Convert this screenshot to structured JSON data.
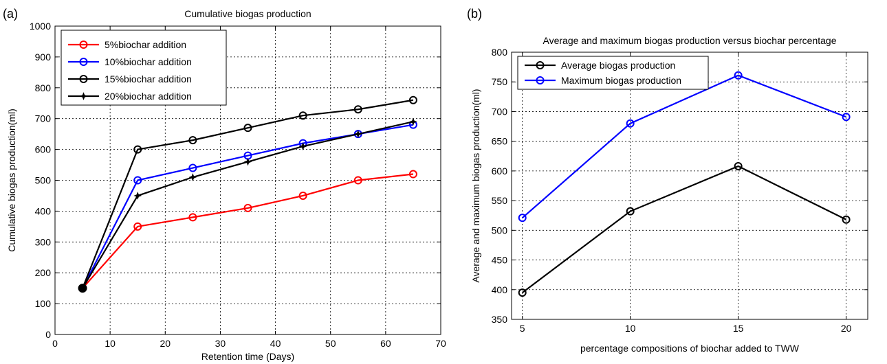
{
  "chart_data": [
    {
      "panel_label": "(a)",
      "type": "line",
      "title": "Cumulative biogas production",
      "xlabel": "Retention time (Days)",
      "ylabel": "Cumulative biogas production(ml)",
      "xlim": [
        0,
        70
      ],
      "ylim": [
        0,
        1000
      ],
      "xticks": [
        0,
        10,
        20,
        30,
        40,
        50,
        60,
        70
      ],
      "yticks": [
        0,
        100,
        200,
        300,
        400,
        500,
        600,
        700,
        800,
        900,
        1000
      ],
      "grid": true,
      "legend_position": "top-left",
      "x": [
        5,
        15,
        25,
        35,
        45,
        55,
        65
      ],
      "series": [
        {
          "name": "5%biochar addition",
          "color": "#ff0000",
          "marker": "circle",
          "values": [
            150,
            350,
            380,
            410,
            450,
            500,
            520
          ]
        },
        {
          "name": "10%biochar addition",
          "color": "#0000ff",
          "marker": "circle",
          "values": [
            150,
            500,
            540,
            580,
            620,
            650,
            680
          ]
        },
        {
          "name": "15%biochar addition",
          "color": "#000000",
          "marker": "circle",
          "values": [
            150,
            600,
            630,
            670,
            710,
            730,
            760
          ]
        },
        {
          "name": "20%biochar addition",
          "color": "#000000",
          "marker": "star",
          "values": [
            150,
            450,
            510,
            560,
            610,
            650,
            690
          ]
        }
      ]
    },
    {
      "panel_label": "(b)",
      "type": "line",
      "title": "Average and maximum biogas production versus biochar percentage",
      "xlabel": "percentage compositions of biochar added to TWW",
      "ylabel": "Average and maximum biogas production(ml)",
      "xlim": [
        4.5,
        21
      ],
      "ylim": [
        350,
        800
      ],
      "xticks": [
        5,
        10,
        15,
        20
      ],
      "yticks": [
        350,
        400,
        450,
        500,
        550,
        600,
        650,
        700,
        750,
        800
      ],
      "grid": true,
      "legend_position": "top-left",
      "x": [
        5,
        10,
        15,
        20
      ],
      "series": [
        {
          "name": "Average biogas production",
          "color": "#000000",
          "marker": "circle",
          "values": [
            395,
            532,
            608,
            518
          ]
        },
        {
          "name": "Maximum biogas production",
          "color": "#0000ff",
          "marker": "circle",
          "values": [
            521,
            680,
            761,
            691
          ]
        }
      ]
    }
  ]
}
